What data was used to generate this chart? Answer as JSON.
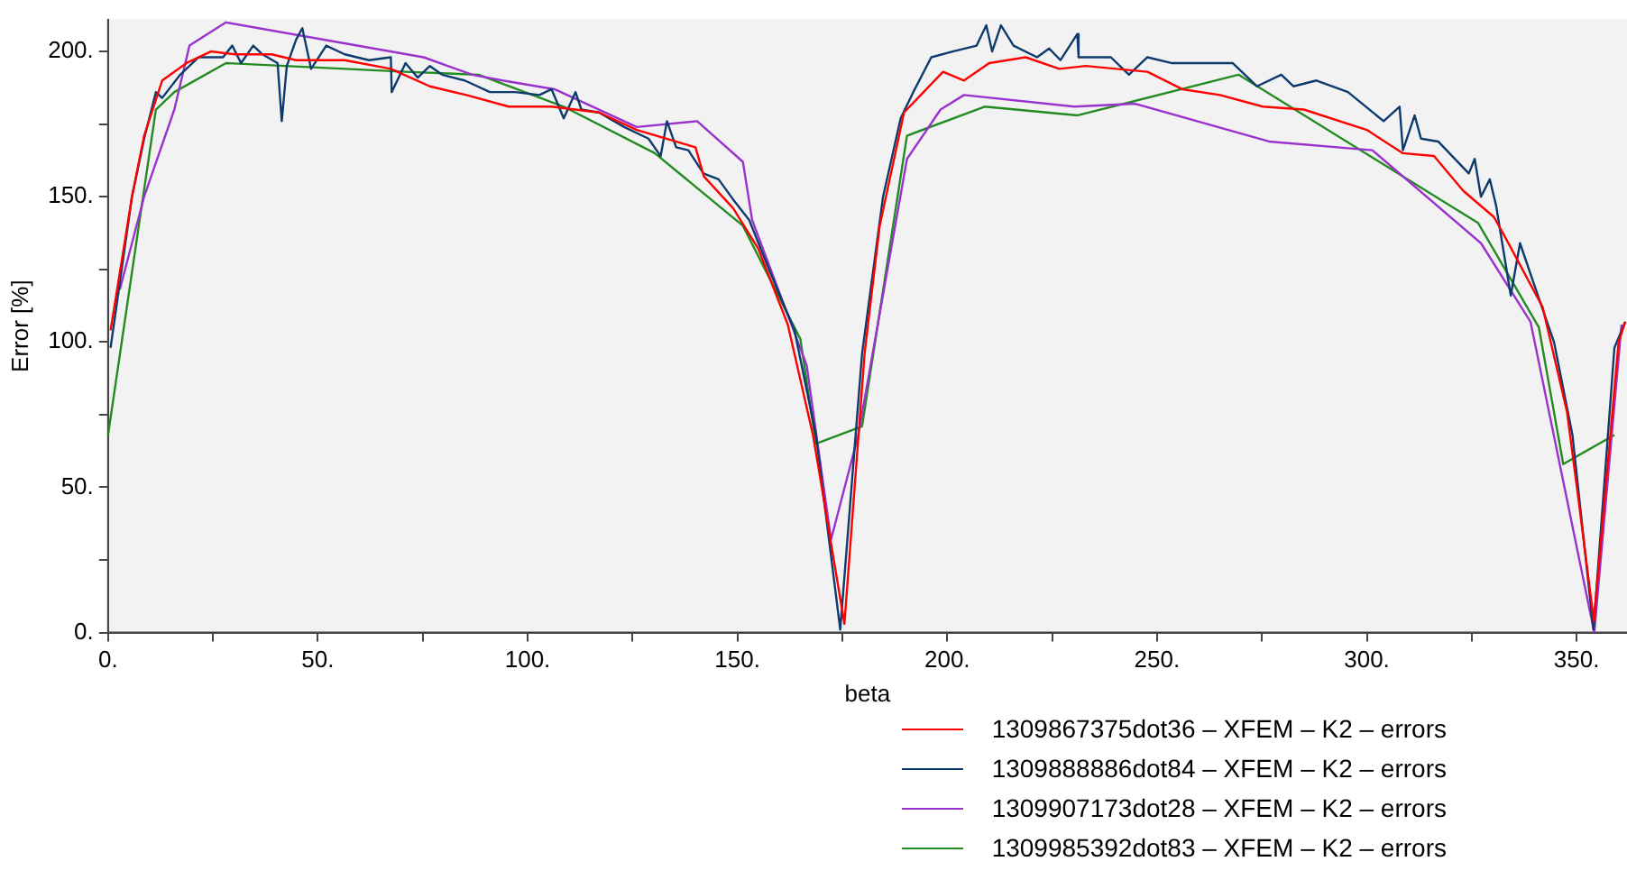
{
  "chart_data": {
    "type": "line",
    "xlabel": "beta",
    "ylabel": "Error [%]",
    "xlim": [
      0,
      362
    ],
    "ylim": [
      0,
      211
    ],
    "xticks": [
      {
        "value": 0,
        "label": "0."
      },
      {
        "value": 25,
        "label": null
      },
      {
        "value": 50,
        "label": "50."
      },
      {
        "value": 75,
        "label": null
      },
      {
        "value": 100,
        "label": "100."
      },
      {
        "value": 125,
        "label": null
      },
      {
        "value": 150,
        "label": "150."
      },
      {
        "value": 175,
        "label": null
      },
      {
        "value": 200,
        "label": "200."
      },
      {
        "value": 225,
        "label": null
      },
      {
        "value": 250,
        "label": "250."
      },
      {
        "value": 275,
        "label": null
      },
      {
        "value": 300,
        "label": "300."
      },
      {
        "value": 325,
        "label": null
      },
      {
        "value": 350,
        "label": "350."
      }
    ],
    "yticks": [
      {
        "value": 0,
        "label": "0."
      },
      {
        "value": 25,
        "label": null
      },
      {
        "value": 50,
        "label": "50."
      },
      {
        "value": 75,
        "label": null
      },
      {
        "value": 100,
        "label": "100."
      },
      {
        "value": 125,
        "label": null
      },
      {
        "value": 150,
        "label": "150."
      },
      {
        "value": 175,
        "label": null
      },
      {
        "value": 200,
        "label": "200."
      }
    ],
    "grid": false,
    "legend": "bottom",
    "series": [
      {
        "name": "1309867375dot36 – XFEM – K2 – errors",
        "color": "#ff0000",
        "x": [
          0.6,
          5.7,
          8.6,
          12.9,
          18.7,
          24.5,
          30.3,
          39,
          44.8,
          56.4,
          67.4,
          76.7,
          85.4,
          95.5,
          105.7,
          117,
          126,
          140,
          142,
          149,
          155,
          162,
          168,
          169.4,
          175.5,
          180.3,
          183.9,
          189.7,
          199,
          204,
          210,
          218.7,
          226.7,
          233,
          247.7,
          256,
          265,
          275.2,
          285,
          300,
          308.5,
          316,
          323,
          330.3,
          333,
          341.9,
          347.7,
          350.6,
          354.1,
          360,
          361.6
        ],
        "values": [
          104,
          150,
          171,
          190,
          196,
          200,
          199,
          199,
          197,
          197,
          194,
          188,
          185,
          181,
          181,
          179,
          173,
          167,
          157,
          146,
          132,
          106,
          68,
          56,
          3,
          96,
          140,
          179,
          193,
          190,
          196,
          198,
          194,
          195,
          193,
          187,
          185,
          181,
          180,
          173,
          165,
          164,
          152,
          143,
          136,
          112,
          76,
          44,
          4,
          100,
          107
        ]
      },
      {
        "name": "1309888886dot84 – XFEM – K2 – errors",
        "color": "#0d3b6e",
        "x": [
          0.6,
          5.7,
          8.6,
          11.4,
          12.9,
          17.2,
          21.6,
          27.4,
          29.6,
          31.7,
          34.6,
          36.8,
          40.4,
          41.4,
          42.6,
          44.8,
          46.3,
          48.4,
          52,
          56.4,
          62.2,
          67.4,
          67.6,
          70.9,
          73.8,
          76.7,
          79.6,
          85,
          91,
          97,
          102.8,
          105.7,
          108.6,
          111.4,
          112.8,
          117,
          123,
          128.8,
          131.7,
          133.2,
          135.4,
          138.3,
          141.9,
          145.5,
          149,
          152.8,
          157.8,
          163.6,
          168.7,
          174.5,
          179.7,
          184.7,
          188.9,
          191.9,
          196.2,
          201.3,
          207,
          209.3,
          210.7,
          212.8,
          215.8,
          221.4,
          224.3,
          227,
          231,
          231.3,
          239,
          243.3,
          247.7,
          253.4,
          259,
          268,
          273.8,
          279.6,
          282.5,
          288,
          295.5,
          304,
          307.8,
          308.6,
          311.4,
          312.9,
          317,
          324.3,
          325.7,
          327.2,
          329.3,
          330.8,
          334.3,
          336.5,
          340.3,
          344.6,
          349,
          354,
          359,
          361.6
        ],
        "values": [
          98,
          150,
          170,
          186,
          184,
          192,
          198,
          198,
          202,
          196,
          202,
          199,
          196,
          176,
          195,
          204,
          208,
          194,
          202,
          199,
          197,
          198,
          186,
          196,
          191,
          195,
          192,
          190,
          186,
          186,
          185,
          187,
          177,
          186,
          180,
          179,
          174,
          170,
          164,
          176,
          167,
          166,
          158,
          156,
          149,
          142,
          124,
          104,
          68,
          1,
          96,
          150,
          177,
          186,
          198,
          200,
          202,
          209,
          200,
          209,
          202,
          198,
          201,
          197,
          206,
          198,
          198,
          192,
          198,
          196,
          196,
          196,
          188,
          192,
          188,
          190,
          186,
          176,
          181,
          166,
          178,
          170,
          169,
          158,
          163,
          150,
          156,
          147,
          116,
          134,
          118,
          100,
          68,
          1,
          98,
          107
        ]
      },
      {
        "name": "1309907173dot28 – XFEM – K2 – errors",
        "color": "#9a32cd",
        "x": [
          2.8,
          8.6,
          15.8,
          19.4,
          28.1,
          75.2,
          86.8,
          94,
          106.4,
          126,
          140.4,
          151.3,
          153.5,
          166.5,
          172.3,
          178.8,
          190.4,
          198.4,
          204,
          230.3,
          244.8,
          276.7,
          301.3,
          327.2,
          339,
          354.2,
          360.7
        ],
        "values": [
          118,
          150,
          180,
          202,
          210,
          198,
          192,
          190,
          187,
          174,
          176,
          162,
          142,
          92,
          32,
          68,
          163,
          180,
          185,
          181,
          182,
          169,
          166,
          134,
          107,
          0,
          106
        ]
      },
      {
        "name": "1309985392dot83 – XFEM – K2 – errors",
        "color": "#228b22",
        "x": [
          0,
          11.4,
          15.8,
          28.1,
          70.9,
          88.3,
          108.6,
          130.3,
          151.3,
          165,
          168.7,
          179.7,
          190.4,
          208.9,
          231.1,
          269.4,
          326.5,
          341,
          346.8,
          359
        ],
        "values": [
          68,
          180,
          186,
          196,
          193,
          192,
          181,
          165,
          140,
          101,
          65,
          71,
          171,
          181,
          178,
          192,
          141,
          105,
          58,
          68
        ]
      }
    ]
  }
}
